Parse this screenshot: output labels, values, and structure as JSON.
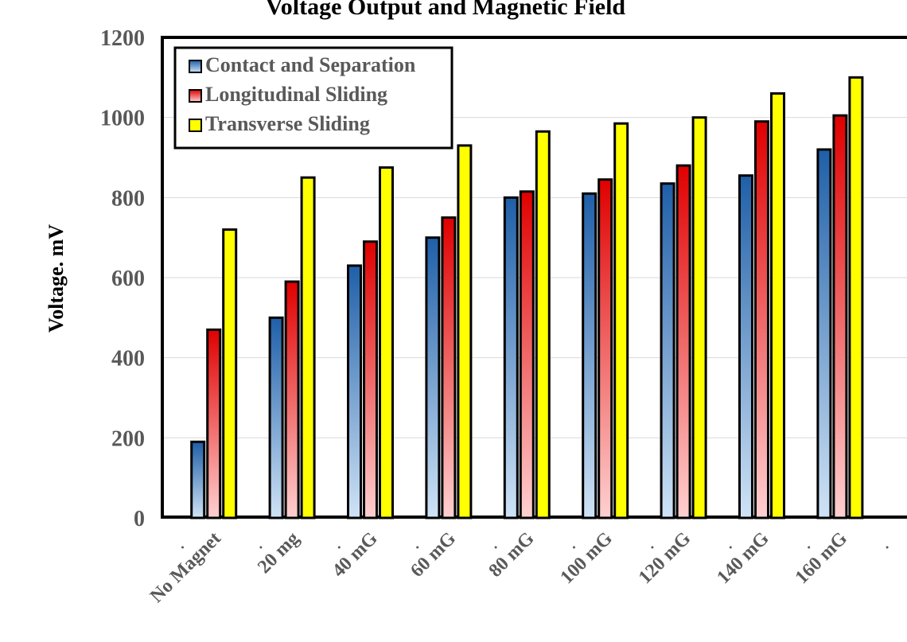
{
  "chart_data": {
    "type": "bar",
    "title": "Voltage Output and Magnetic Field",
    "xlabel": "",
    "ylabel": "Voltage. mV",
    "ylim": [
      0,
      1200
    ],
    "yticks": [
      0,
      200,
      400,
      600,
      800,
      1000,
      1200
    ],
    "categories": [
      "No Magnet",
      "20 mg",
      "40 mG",
      "60 mG",
      "80 mG",
      "100 mG",
      "120 mG",
      "140 mG",
      "160 mG"
    ],
    "tick_labels": [
      "No Magnet",
      "20 mg",
      "40 mG",
      "60 mG",
      "80 mG",
      "100 mG",
      "120 mG",
      "140 mG",
      "160 mG"
    ],
    "series": [
      {
        "name": "Contact and Separation",
        "values": [
          190,
          500,
          630,
          700,
          800,
          810,
          835,
          855,
          920
        ],
        "color": "#2e75b6"
      },
      {
        "name": "Longitudinal Sliding",
        "values": [
          470,
          590,
          690,
          750,
          815,
          845,
          880,
          990,
          1005
        ],
        "color": "#ff0000"
      },
      {
        "name": "Transverse Sliding",
        "values": [
          720,
          850,
          875,
          930,
          965,
          985,
          1000,
          1060,
          1100
        ],
        "color": "#ffff00"
      }
    ],
    "grid": true,
    "legend_position": "top-left"
  }
}
